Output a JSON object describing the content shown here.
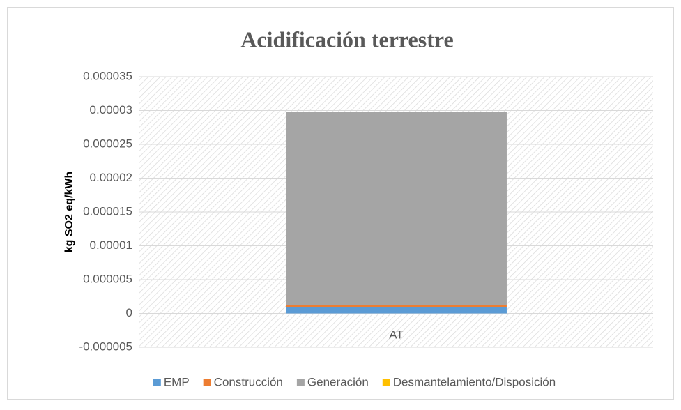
{
  "chart_data": {
    "type": "stacked_bar",
    "title": "Acidificación terrestre",
    "ylabel": "kg SO2 eq/kWh",
    "categories": [
      "AT"
    ],
    "series": [
      {
        "name": "EMP",
        "color": "#5b9bd5",
        "values": [
          9e-07
        ]
      },
      {
        "name": "Construcción",
        "color": "#ed7d31",
        "values": [
          3e-07
        ]
      },
      {
        "name": "Generación",
        "color": "#a5a5a5",
        "values": [
          2.86e-05
        ]
      },
      {
        "name": "Desmantelamiento/Disposición",
        "color": "#ffc000",
        "values": [
          0
        ]
      }
    ],
    "ylim": [
      -5e-06,
      3.5e-05
    ],
    "yticks": [
      -5e-06,
      0,
      5e-06,
      1e-05,
      1.5e-05,
      2e-05,
      2.5e-05,
      3e-05,
      3.5e-05
    ],
    "grid": true,
    "legend": "bottom"
  }
}
